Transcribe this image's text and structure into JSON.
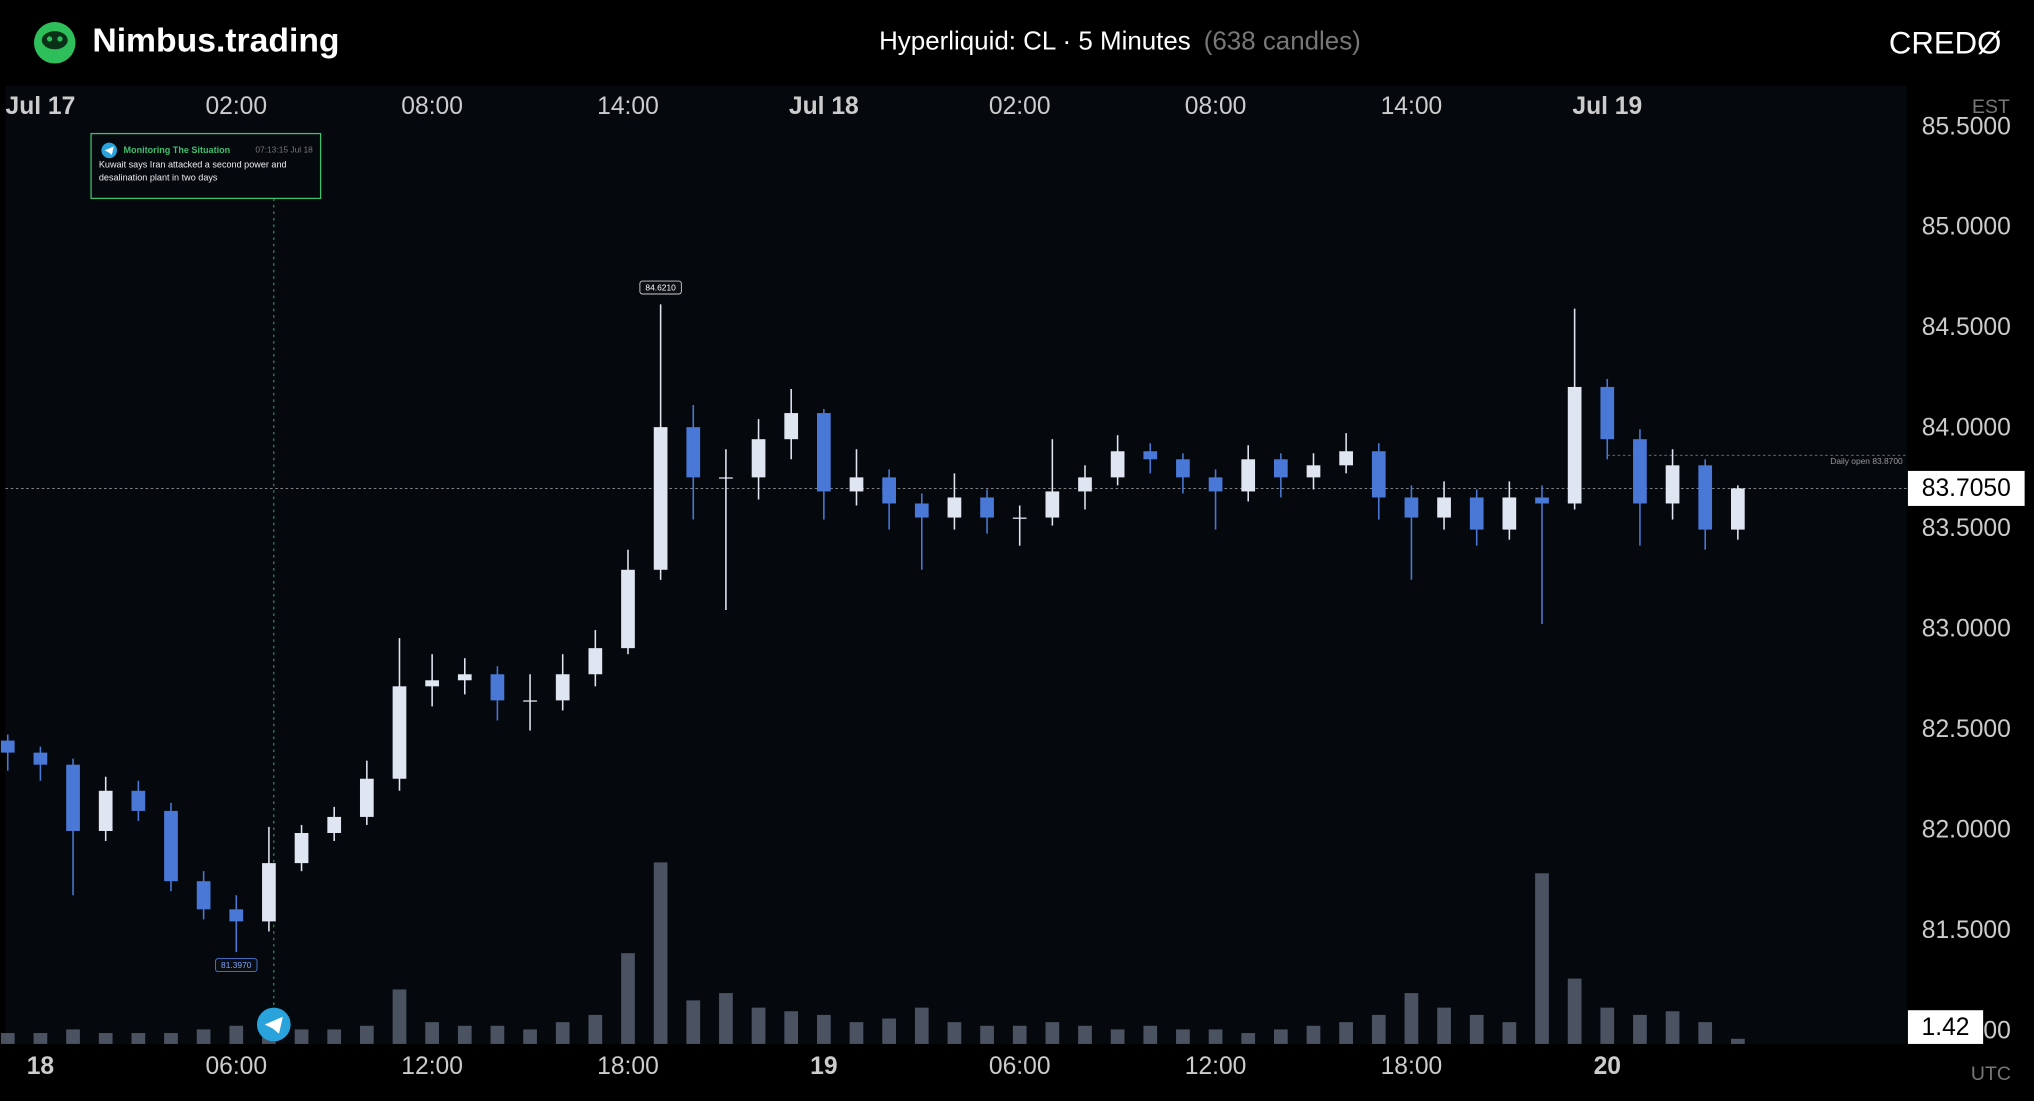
{
  "header": {
    "brand": "Nimbus.trading",
    "title": "Hyperliquid: CL · 5 Minutes",
    "subtitle": "(638 candles)",
    "partner": "CREDØ"
  },
  "chart_data": {
    "type": "candlestick",
    "x": [
      -1,
      0,
      1,
      2,
      3,
      4,
      5,
      6,
      7,
      8,
      9,
      10,
      11,
      12,
      13,
      14,
      15,
      16,
      17,
      18,
      19,
      20,
      21,
      22,
      23,
      24,
      25,
      26,
      27,
      28,
      29,
      30,
      31,
      32,
      33,
      34,
      35,
      36,
      37,
      38,
      39,
      40,
      41,
      42,
      43,
      44,
      45,
      46,
      47,
      48,
      49,
      50,
      51,
      52
    ],
    "open": [
      82.45,
      82.39,
      82.33,
      82.0,
      82.2,
      82.1,
      81.75,
      81.61,
      81.55,
      81.84,
      81.99,
      82.07,
      82.26,
      82.72,
      82.75,
      82.78,
      82.65,
      82.65,
      82.78,
      82.91,
      83.3,
      84.01,
      83.76,
      83.76,
      83.95,
      84.08,
      83.69,
      83.76,
      83.63,
      83.56,
      83.66,
      83.56,
      83.56,
      83.69,
      83.76,
      83.89,
      83.85,
      83.76,
      83.69,
      83.85,
      83.76,
      83.82,
      83.89,
      83.66,
      83.56,
      83.66,
      83.5,
      83.66,
      83.63,
      84.21,
      83.95,
      83.63,
      83.82,
      83.5
    ],
    "high": [
      82.48,
      82.42,
      82.36,
      82.27,
      82.25,
      82.14,
      81.8,
      81.68,
      82.02,
      82.03,
      82.12,
      82.35,
      82.96,
      82.88,
      82.86,
      82.82,
      82.78,
      82.88,
      83.0,
      83.4,
      84.621,
      84.12,
      83.9,
      84.05,
      84.2,
      84.1,
      83.9,
      83.8,
      83.68,
      83.78,
      83.7,
      83.62,
      83.95,
      83.82,
      83.97,
      83.93,
      83.88,
      83.8,
      83.92,
      83.88,
      83.88,
      83.98,
      83.93,
      83.72,
      83.74,
      83.7,
      83.74,
      83.72,
      84.6,
      84.25,
      84.0,
      83.9,
      83.85,
      83.72
    ],
    "low": [
      82.3,
      82.25,
      81.68,
      81.95,
      82.05,
      81.7,
      81.56,
      81.397,
      81.5,
      81.8,
      81.95,
      82.03,
      82.2,
      82.62,
      82.68,
      82.55,
      82.5,
      82.6,
      82.72,
      82.88,
      83.25,
      83.55,
      83.1,
      83.65,
      83.85,
      83.55,
      83.62,
      83.5,
      83.3,
      83.5,
      83.48,
      83.42,
      83.52,
      83.6,
      83.72,
      83.78,
      83.68,
      83.5,
      83.64,
      83.66,
      83.7,
      83.78,
      83.55,
      83.25,
      83.5,
      83.42,
      83.45,
      83.03,
      83.6,
      83.85,
      83.42,
      83.55,
      83.4,
      83.45
    ],
    "close": [
      82.39,
      82.33,
      82.0,
      82.2,
      82.1,
      81.75,
      81.61,
      81.55,
      81.84,
      81.99,
      82.07,
      82.26,
      82.72,
      82.75,
      82.78,
      82.65,
      82.65,
      82.78,
      82.91,
      83.3,
      84.01,
      83.76,
      83.76,
      83.95,
      84.08,
      83.69,
      83.76,
      83.63,
      83.56,
      83.66,
      83.56,
      83.56,
      83.69,
      83.76,
      83.89,
      83.85,
      83.76,
      83.69,
      83.85,
      83.76,
      83.82,
      83.89,
      83.66,
      83.56,
      83.66,
      83.5,
      83.66,
      83.63,
      84.21,
      83.95,
      83.63,
      83.82,
      83.5,
      83.705
    ],
    "volume": [
      3,
      3,
      4,
      3,
      3,
      3,
      4,
      5,
      3,
      4,
      4,
      5,
      15,
      6,
      5,
      5,
      4,
      6,
      8,
      25,
      50,
      12,
      14,
      10,
      9,
      8,
      6,
      7,
      10,
      6,
      5,
      5,
      6,
      5,
      4,
      5,
      4,
      4,
      3,
      4,
      5,
      6,
      8,
      14,
      10,
      8,
      6,
      47,
      18,
      10,
      8,
      9,
      6,
      1.42
    ],
    "up_color": "#dfe6f2",
    "down_color": "#4a78d6",
    "volume_color": "#6a7387",
    "xlim": [
      -1.07,
      57.17
    ],
    "ylim": [
      80.94,
      85.71
    ],
    "vlim": [
      0,
      100
    ],
    "yticks": [
      {
        "value": 81,
        "label": "81.0000"
      },
      {
        "value": 81.5,
        "label": "81.5000"
      },
      {
        "value": 82,
        "label": "82.0000"
      },
      {
        "value": 82.5,
        "label": "82.5000"
      },
      {
        "value": 83,
        "label": "83.0000"
      },
      {
        "value": 83.5,
        "label": "83.5000"
      },
      {
        "value": 84,
        "label": "84.0000"
      },
      {
        "value": 84.5,
        "label": "84.5000"
      },
      {
        "value": 85,
        "label": "85.0000"
      },
      {
        "value": 85.5,
        "label": "85.5000"
      }
    ],
    "xticks_est": [
      {
        "value": 0,
        "label": "Jul 17"
      },
      {
        "value": 6,
        "label": "02:00"
      },
      {
        "value": 12,
        "label": "08:00"
      },
      {
        "value": 18,
        "label": "14:00"
      },
      {
        "value": 24,
        "label": "Jul 18"
      },
      {
        "value": 30,
        "label": "02:00"
      },
      {
        "value": 36,
        "label": "08:00"
      },
      {
        "value": 42,
        "label": "14:00"
      },
      {
        "value": 48,
        "label": "Jul 19"
      }
    ],
    "xticks": [
      {
        "value": 0,
        "label": "18"
      },
      {
        "value": 6,
        "label": "06:00"
      },
      {
        "value": 12,
        "label": "12:00"
      },
      {
        "value": 18,
        "label": "18:00"
      },
      {
        "value": 24,
        "label": "19"
      },
      {
        "value": 30,
        "label": "06:00"
      },
      {
        "value": 36,
        "label": "12:00"
      },
      {
        "value": 42,
        "label": "18:00"
      },
      {
        "value": 48,
        "label": "20"
      }
    ],
    "top_axis_label": "EST",
    "bottom_axis_label": "UTC",
    "last_price": {
      "value": 83.705,
      "label": "83.7050"
    },
    "daily_open": {
      "value": 83.87,
      "label": "Daily open 83.8700"
    },
    "high_marker": {
      "x": 19,
      "value": 84.621,
      "label": "84.6210"
    },
    "low_marker": {
      "x": 6,
      "value": 81.397,
      "label": "81.3970"
    },
    "event": {
      "x": 7.15,
      "source": "Monitoring The Situation",
      "time": "07:13:15 Jul 18",
      "text": "Kuwait says Iran attacked a second power and desalination plant in two days"
    }
  }
}
